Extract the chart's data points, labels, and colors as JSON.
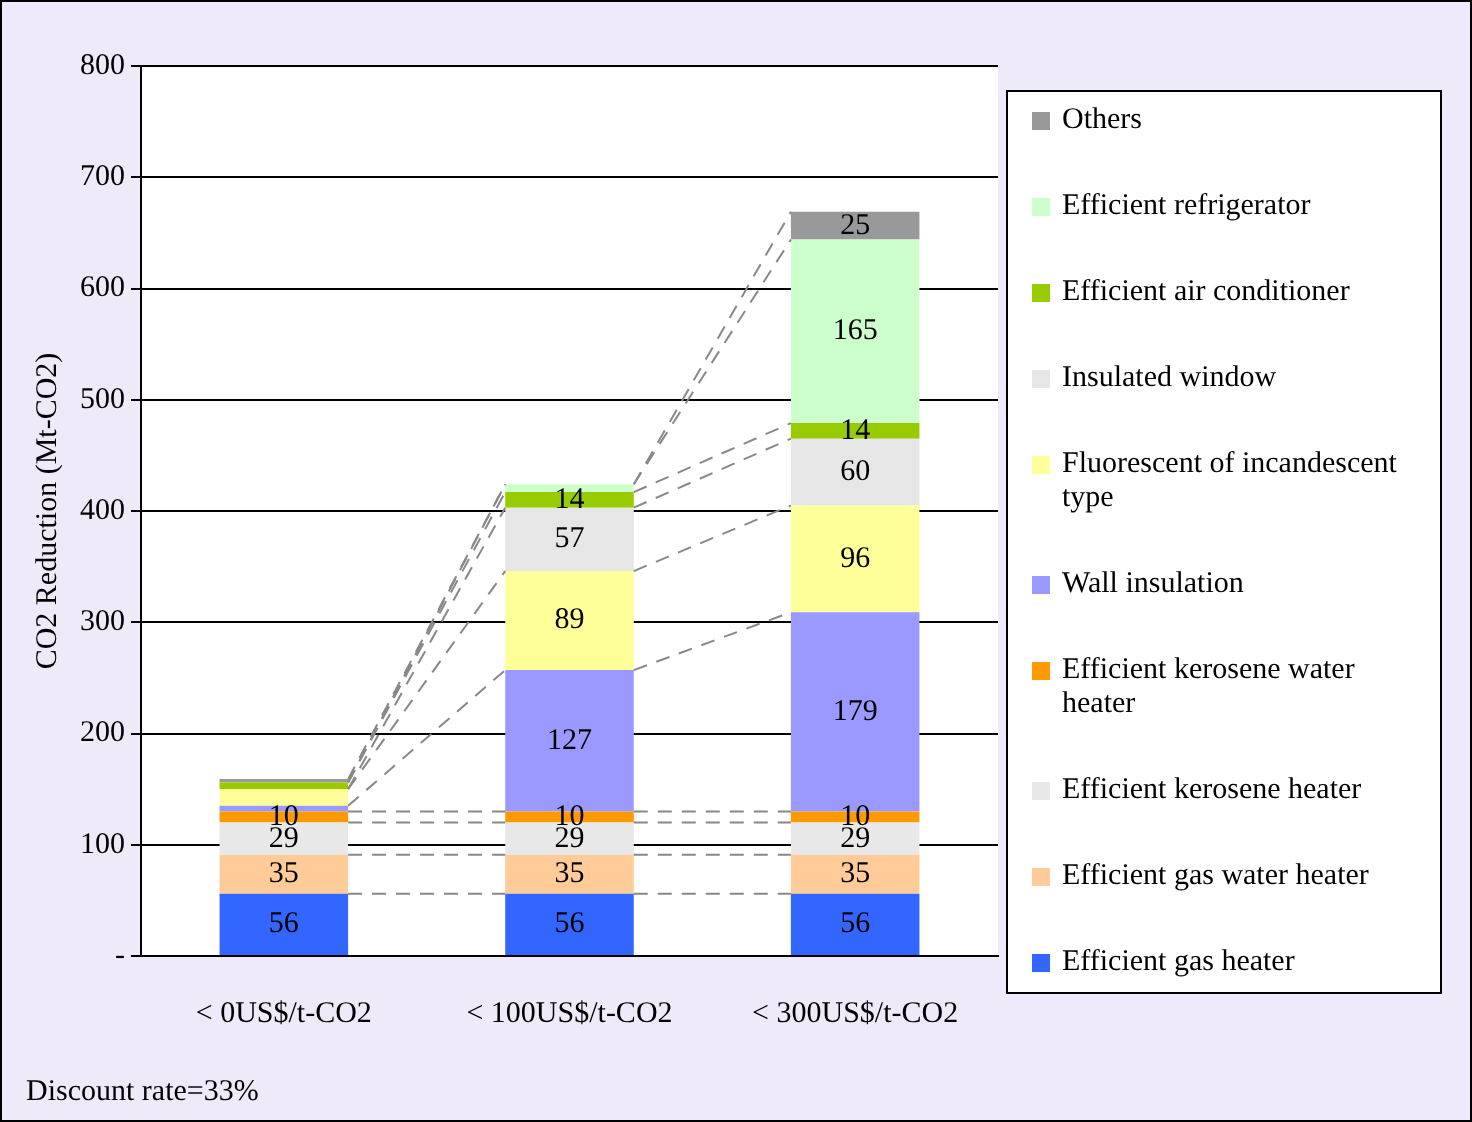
{
  "chart_data": {
    "type": "bar",
    "stacked": true,
    "ylabel": "CO2 Reduction (Mt-CO2)",
    "categories": [
      "< 0US$/t-CO2",
      "< 100US$/t-CO2",
      "< 300US$/t-CO2"
    ],
    "ylim": [
      0,
      800
    ],
    "yticks": [
      {
        "value": 0,
        "label": "-"
      },
      100,
      200,
      300,
      400,
      500,
      600,
      700,
      800
    ],
    "grid": "y",
    "legend": "right",
    "annotations": [
      "Discount rate=33%"
    ],
    "series": [
      {
        "name": "Efficient gas heater",
        "color": "#3366ff",
        "values": [
          56,
          56,
          56
        ],
        "value_labels": [
          "56",
          "56",
          "56"
        ]
      },
      {
        "name": "Efficient gas water heater",
        "color": "#ffcc99",
        "values": [
          35,
          35,
          35
        ],
        "value_labels": [
          "35",
          "35",
          "35"
        ]
      },
      {
        "name": "Efficient kerosene heater",
        "color": "#e8e8e8",
        "values": [
          29,
          29,
          29
        ],
        "value_labels": [
          "29",
          "29",
          "29"
        ]
      },
      {
        "name": "Efficient kerosene water heater",
        "color": "#ff9900",
        "values": [
          10,
          10,
          10
        ],
        "value_labels": [
          "10",
          "10",
          "10"
        ]
      },
      {
        "name": "Wall insulation",
        "color": "#9999ff",
        "values": [
          5,
          127,
          179
        ],
        "value_labels": [
          null,
          "127",
          "179"
        ]
      },
      {
        "name": "Fluorescent of incandescent type",
        "color": "#ffff99",
        "values": [
          15,
          89,
          96
        ],
        "value_labels": [
          null,
          "89",
          "96"
        ]
      },
      {
        "name": "Insulated window",
        "color": "#e6e6e6",
        "values": [
          0,
          57,
          60
        ],
        "value_labels": [
          null,
          "57",
          "60"
        ]
      },
      {
        "name": "Efficient air conditioner",
        "color": "#99cc00",
        "values": [
          6,
          14,
          14
        ],
        "value_labels": [
          null,
          "14",
          "14"
        ]
      },
      {
        "name": "Efficient refrigerator",
        "color": "#ccffcc",
        "values": [
          0,
          7,
          165
        ],
        "value_labels": [
          null,
          null,
          "165"
        ]
      },
      {
        "name": "Others",
        "color": "#999999",
        "values": [
          3,
          0,
          25
        ],
        "value_labels": [
          null,
          null,
          "25"
        ]
      }
    ]
  }
}
